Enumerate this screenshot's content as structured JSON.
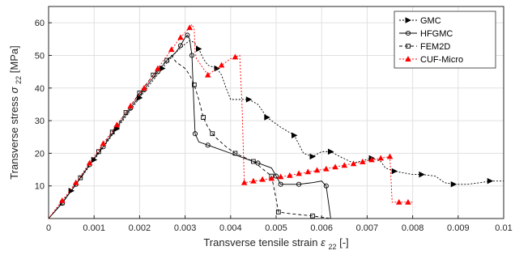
{
  "chart_data": {
    "type": "line",
    "xlabel": "Transverse tensile strain",
    "xlabel_sym": "ε",
    "xlabel_sub": "22",
    "xlabel_unit": " [-]",
    "ylabel": "Transverse stress",
    "ylabel_sym": "σ",
    "ylabel_sub": "22",
    "ylabel_unit": " [MPa]",
    "xlim": [
      0,
      0.01
    ],
    "ylim": [
      0,
      65
    ],
    "xticks": [
      0,
      0.001,
      0.002,
      0.003,
      0.004,
      0.005,
      0.006,
      0.007,
      0.008,
      0.009,
      0.01
    ],
    "xtick_labels": [
      "0",
      "0.001",
      "0.002",
      "0.003",
      "0.004",
      "0.005",
      "0.006",
      "0.007",
      "0.008",
      "0.009",
      "0.01"
    ],
    "yticks": [
      10,
      20,
      30,
      40,
      50,
      60
    ],
    "ytick_labels": [
      "10",
      "20",
      "30",
      "40",
      "50",
      "60"
    ],
    "grid": true,
    "legend_position": "top-right",
    "series": [
      {
        "name": "GMC",
        "color": "#000000",
        "dash": "2,2",
        "marker": "triangle-right",
        "points": [
          [
            0,
            0
          ],
          [
            0.0002,
            3.6
          ],
          [
            0.0005,
            8.5
          ],
          [
            0.001,
            18
          ],
          [
            0.0015,
            27.5
          ],
          [
            0.002,
            37
          ],
          [
            0.0025,
            46
          ],
          [
            0.0028,
            51
          ],
          [
            0.003,
            53.5
          ],
          [
            0.0031,
            54.5
          ],
          [
            0.0032,
            54
          ],
          [
            0.0033,
            52
          ],
          [
            0.0034,
            49
          ],
          [
            0.0035,
            47
          ],
          [
            0.0037,
            46
          ],
          [
            0.0038,
            44
          ],
          [
            0.0039,
            40
          ],
          [
            0.004,
            36.5
          ],
          [
            0.0044,
            36.5
          ],
          [
            0.0046,
            35
          ],
          [
            0.0048,
            31
          ],
          [
            0.0051,
            28
          ],
          [
            0.0054,
            25.5
          ],
          [
            0.0056,
            20
          ],
          [
            0.0058,
            19
          ],
          [
            0.006,
            20.5
          ],
          [
            0.0062,
            20.5
          ],
          [
            0.0064,
            19
          ],
          [
            0.0067,
            17
          ],
          [
            0.0071,
            18.5
          ],
          [
            0.0073,
            17.5
          ],
          [
            0.0074,
            15.5
          ],
          [
            0.0076,
            14.5
          ],
          [
            0.0078,
            14
          ],
          [
            0.008,
            13.5
          ],
          [
            0.0082,
            13.5
          ],
          [
            0.0085,
            13
          ],
          [
            0.0087,
            11
          ],
          [
            0.0089,
            10.5
          ],
          [
            0.0092,
            10.5
          ],
          [
            0.0095,
            11
          ],
          [
            0.0097,
            11.5
          ],
          [
            0.01,
            11.5
          ]
        ],
        "marker_points": [
          [
            0.0005,
            8.5
          ],
          [
            0.001,
            18
          ],
          [
            0.0015,
            27.5
          ],
          [
            0.002,
            37
          ],
          [
            0.0025,
            46
          ],
          [
            0.0033,
            52
          ],
          [
            0.0037,
            46
          ],
          [
            0.0044,
            36.5
          ],
          [
            0.0048,
            31
          ],
          [
            0.0054,
            25.5
          ],
          [
            0.0058,
            19
          ],
          [
            0.0062,
            20.5
          ],
          [
            0.0071,
            18.5
          ],
          [
            0.0076,
            14.5
          ],
          [
            0.0082,
            13.5
          ],
          [
            0.0089,
            10.5
          ],
          [
            0.0097,
            11.5
          ]
        ]
      },
      {
        "name": "HFGMC",
        "color": "#000000",
        "dash": "none",
        "marker": "circle",
        "points": [
          [
            0,
            0
          ],
          [
            0.0003,
            4.7
          ],
          [
            0.0006,
            10.5
          ],
          [
            0.0009,
            16.5
          ],
          [
            0.0012,
            22
          ],
          [
            0.0015,
            28
          ],
          [
            0.0018,
            33.8
          ],
          [
            0.0021,
            39.5
          ],
          [
            0.0024,
            45
          ],
          [
            0.0026,
            48.5
          ],
          [
            0.0028,
            51
          ],
          [
            0.0029,
            53
          ],
          [
            0.003,
            55.5
          ],
          [
            0.00305,
            56.2
          ],
          [
            0.0031,
            55
          ],
          [
            0.00315,
            50
          ],
          [
            0.0032,
            32
          ],
          [
            0.00322,
            26
          ],
          [
            0.0033,
            23.5
          ],
          [
            0.0035,
            22.5
          ],
          [
            0.0037,
            21.5
          ],
          [
            0.004,
            20
          ],
          [
            0.0043,
            18.5
          ],
          [
            0.0046,
            17
          ],
          [
            0.0049,
            15.5
          ],
          [
            0.005,
            13
          ],
          [
            0.0051,
            10.5
          ],
          [
            0.0055,
            10.5
          ],
          [
            0.0058,
            11
          ],
          [
            0.006,
            11.5
          ],
          [
            0.0061,
            10
          ],
          [
            0.0062,
            0
          ]
        ],
        "marker_points": [
          [
            0.0003,
            4.7
          ],
          [
            0.0006,
            10.5
          ],
          [
            0.0009,
            16.5
          ],
          [
            0.0012,
            22
          ],
          [
            0.0015,
            28
          ],
          [
            0.0018,
            33.8
          ],
          [
            0.0021,
            39.5
          ],
          [
            0.0024,
            45
          ],
          [
            0.0029,
            53
          ],
          [
            0.00305,
            56.2
          ],
          [
            0.00315,
            50
          ],
          [
            0.00322,
            26
          ],
          [
            0.0035,
            22.5
          ],
          [
            0.0046,
            17
          ],
          [
            0.005,
            13
          ],
          [
            0.0051,
            10.5
          ],
          [
            0.0055,
            10.5
          ],
          [
            0.0061,
            10
          ]
        ]
      },
      {
        "name": "FEM2D",
        "color": "#000000",
        "dash": "4,3",
        "marker": "square",
        "points": [
          [
            0,
            0
          ],
          [
            0.0003,
            4.8
          ],
          [
            0.0007,
            12.5
          ],
          [
            0.0011,
            20.5
          ],
          [
            0.0014,
            26.5
          ],
          [
            0.0017,
            32.5
          ],
          [
            0.002,
            38.5
          ],
          [
            0.0023,
            44
          ],
          [
            0.0026,
            48.5
          ],
          [
            0.0027,
            50
          ],
          [
            0.0028,
            48
          ],
          [
            0.0029,
            47
          ],
          [
            0.003,
            46
          ],
          [
            0.0031,
            44
          ],
          [
            0.0032,
            41
          ],
          [
            0.0033,
            36.5
          ],
          [
            0.0034,
            31
          ],
          [
            0.0035,
            28
          ],
          [
            0.0036,
            26
          ],
          [
            0.0037,
            24.5
          ],
          [
            0.0039,
            22
          ],
          [
            0.0041,
            20
          ],
          [
            0.0045,
            17.5
          ],
          [
            0.0049,
            13
          ],
          [
            0.005,
            6
          ],
          [
            0.00505,
            2
          ],
          [
            0.0053,
            1.5
          ],
          [
            0.0058,
            0.8
          ],
          [
            0.0062,
            0
          ]
        ],
        "marker_points": [
          [
            0.0003,
            4.8
          ],
          [
            0.0007,
            12.5
          ],
          [
            0.0011,
            20.5
          ],
          [
            0.0014,
            26.5
          ],
          [
            0.0017,
            32.5
          ],
          [
            0.002,
            38.5
          ],
          [
            0.0023,
            44
          ],
          [
            0.0026,
            48.5
          ],
          [
            0.0032,
            41
          ],
          [
            0.0034,
            31
          ],
          [
            0.0036,
            26
          ],
          [
            0.0041,
            20
          ],
          [
            0.0045,
            17.5
          ],
          [
            0.0049,
            13
          ],
          [
            0.00505,
            2
          ],
          [
            0.0058,
            0.8
          ]
        ]
      },
      {
        "name": "CUF-Micro",
        "color": "#ff0000",
        "dash": "2,2",
        "marker": "triangle-up",
        "points": [
          [
            0,
            0
          ],
          [
            0.0003,
            5.5
          ],
          [
            0.0006,
            11
          ],
          [
            0.0009,
            17
          ],
          [
            0.0012,
            23
          ],
          [
            0.0015,
            28.7
          ],
          [
            0.0018,
            34.5
          ],
          [
            0.0021,
            40
          ],
          [
            0.0024,
            46
          ],
          [
            0.0027,
            51.8
          ],
          [
            0.0029,
            55.5
          ],
          [
            0.0031,
            58.5
          ],
          [
            0.00315,
            59.5
          ],
          [
            0.0032,
            58
          ],
          [
            0.00322,
            51
          ],
          [
            0.00325,
            49
          ],
          [
            0.0035,
            44
          ],
          [
            0.004,
            49
          ],
          [
            0.0042,
            50
          ],
          [
            0.00425,
            35
          ],
          [
            0.0043,
            11
          ],
          [
            0.005,
            12.5
          ],
          [
            0.006,
            15
          ],
          [
            0.007,
            17.7
          ],
          [
            0.0075,
            19
          ],
          [
            0.00755,
            5
          ],
          [
            0.008,
            5
          ]
        ],
        "marker_points": [
          [
            0.0003,
            5.5
          ],
          [
            0.0006,
            11
          ],
          [
            0.0009,
            17
          ],
          [
            0.0012,
            23
          ],
          [
            0.0015,
            28.7
          ],
          [
            0.0018,
            34.5
          ],
          [
            0.0021,
            40
          ],
          [
            0.0024,
            46
          ],
          [
            0.0027,
            51.8
          ],
          [
            0.0029,
            55.5
          ],
          [
            0.0031,
            58.5
          ],
          [
            0.0035,
            44
          ],
          [
            0.0038,
            47
          ],
          [
            0.0041,
            49.5
          ],
          [
            0.0043,
            11
          ],
          [
            0.0045,
            11.5
          ],
          [
            0.0047,
            12
          ],
          [
            0.0049,
            12.3
          ],
          [
            0.0051,
            12.8
          ],
          [
            0.0053,
            13.2
          ],
          [
            0.0055,
            13.8
          ],
          [
            0.0057,
            14.3
          ],
          [
            0.0059,
            14.8
          ],
          [
            0.0061,
            15.2
          ],
          [
            0.0063,
            15.8
          ],
          [
            0.0065,
            16.3
          ],
          [
            0.0067,
            16.8
          ],
          [
            0.0069,
            17.4
          ],
          [
            0.0071,
            18
          ],
          [
            0.0073,
            18.5
          ],
          [
            0.0075,
            19
          ],
          [
            0.0077,
            5
          ],
          [
            0.0079,
            5
          ]
        ]
      }
    ]
  }
}
